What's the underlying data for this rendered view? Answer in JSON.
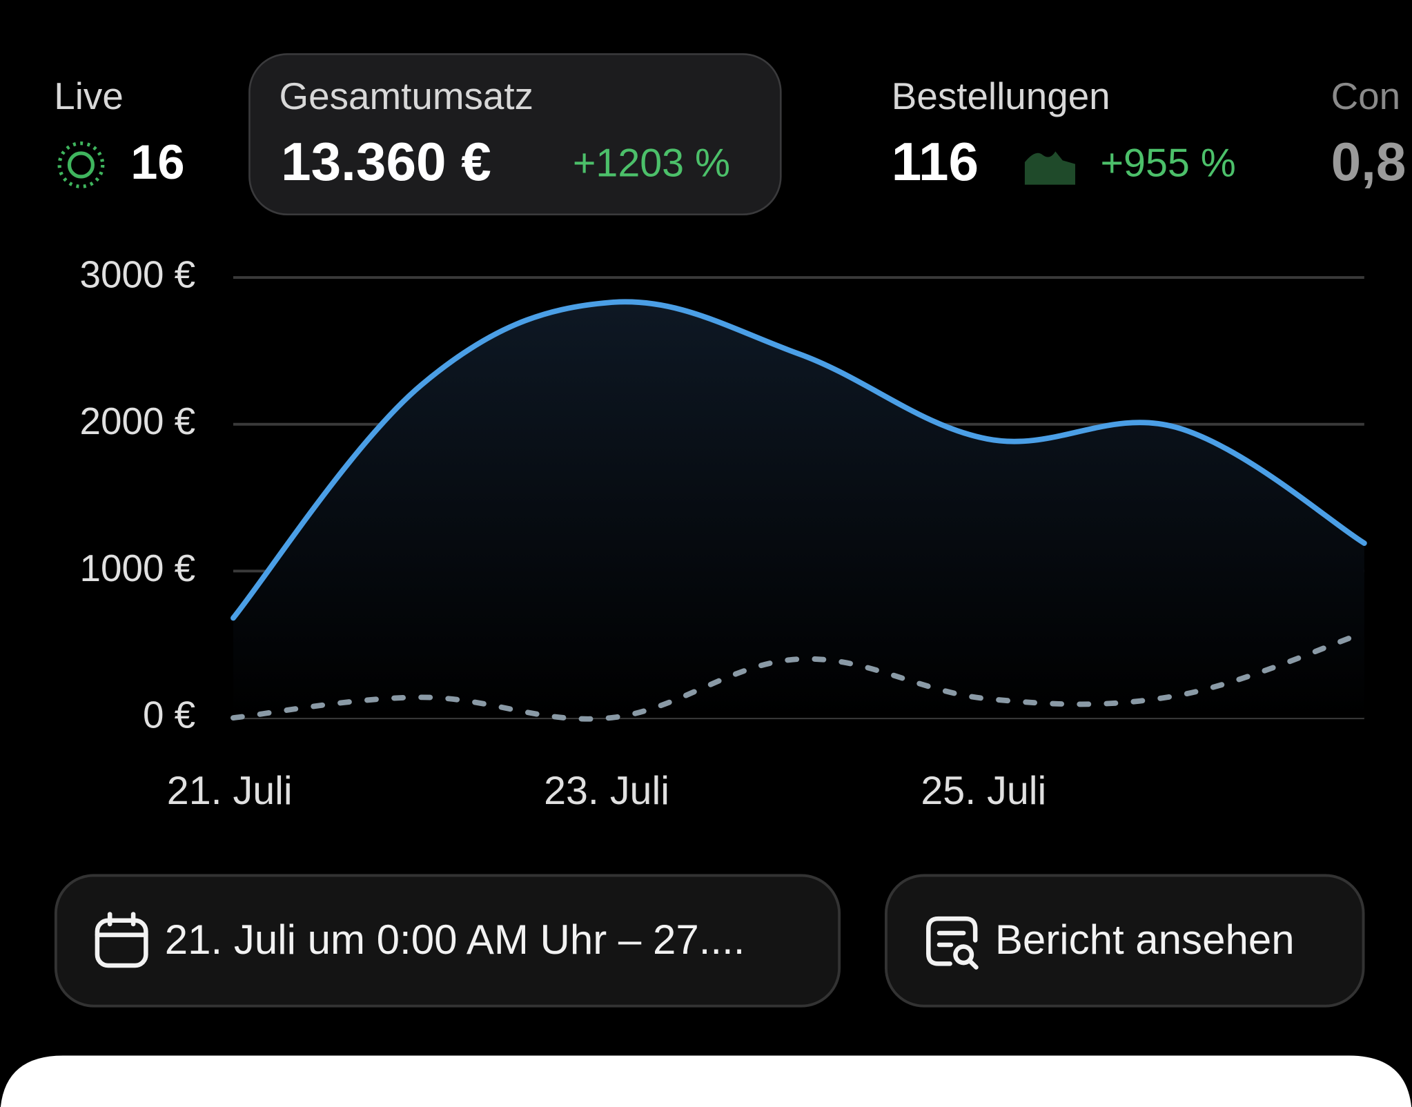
{
  "metrics": [
    {
      "label": "Live",
      "value": "16"
    },
    {
      "label": "Gesamtumsatz",
      "value": "13.360 €",
      "change": "+1203 %"
    },
    {
      "label": "Bestellungen",
      "value": "116",
      "change": "+955 %"
    },
    {
      "label": "Con",
      "value": "0,8"
    }
  ],
  "chart_data": {
    "type": "line",
    "x": [
      21,
      22,
      23,
      24,
      25,
      26,
      27
    ],
    "series": [
      {
        "color": "#4b9fe6",
        "values": [
          680,
          2270,
          2830,
          2480,
          1900,
          1980,
          1190
        ]
      },
      {
        "color": "#8a9aa6",
        "values": [
          0,
          140,
          0,
          400,
          130,
          150,
          580
        ]
      }
    ],
    "xlim": [
      21,
      27
    ],
    "xticks": [
      {
        "value": 21,
        "label": "21. Juli"
      },
      {
        "value": 23,
        "label": "23. Juli"
      },
      {
        "value": 25,
        "label": "25. Juli"
      }
    ],
    "ylim": [
      0,
      3000
    ],
    "yticks": [
      {
        "value": 0,
        "label": "0 €"
      },
      {
        "value": 1000,
        "label": "1000 €"
      },
      {
        "value": 2000,
        "label": "2000 €"
      },
      {
        "value": 3000,
        "label": "3000 €"
      }
    ],
    "grid": true
  },
  "buttons": [
    {
      "label": "21. Juli um 0:00 AM Uhr – 27...."
    },
    {
      "label": "Bericht ansehen"
    }
  ]
}
